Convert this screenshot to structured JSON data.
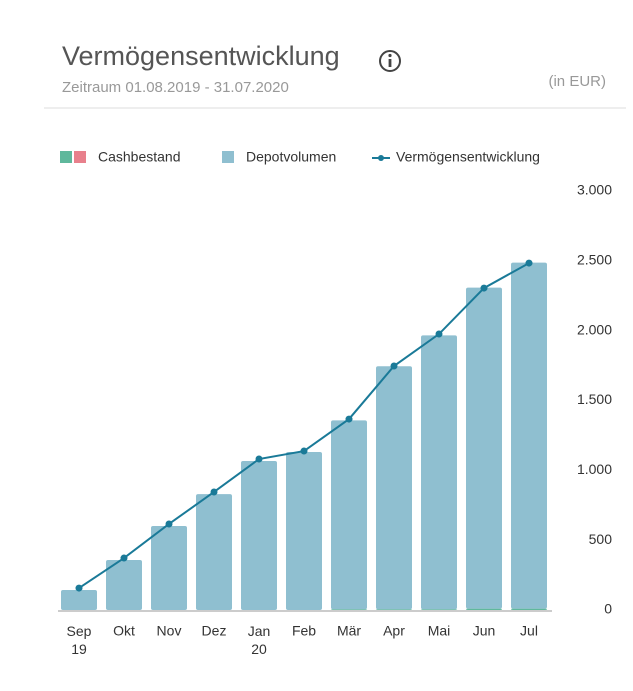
{
  "chart_data": {
    "type": "bar-line",
    "title": "Vermögensentwicklung",
    "subtitle": "Zeitraum 01.08.2019 - 31.07.2020",
    "unit_label": "(in EUR)",
    "categories": [
      "Sep 19",
      "Okt",
      "Nov",
      "Dez",
      "Jan 20",
      "Feb",
      "Mär",
      "Apr",
      "Mai",
      "Jun",
      "Jul"
    ],
    "series": [
      {
        "name": "Cashbestand",
        "kind": "bar",
        "color": "#5fb89c",
        "second_color": "#e8808c",
        "values": [
          0,
          0,
          0,
          0,
          0,
          0,
          5,
          5,
          5,
          10,
          10
        ]
      },
      {
        "name": "Depotvolumen",
        "kind": "bar",
        "color": "#8fbfd0",
        "values": [
          143,
          358,
          601,
          830,
          1067,
          1131,
          1353,
          1740,
          1961,
          2298,
          2477
        ]
      },
      {
        "name": "Vermögensentwicklung",
        "kind": "line",
        "color": "#1a7a98",
        "values": [
          157,
          372,
          616,
          845,
          1081,
          1138,
          1367,
          1747,
          1976,
          2305,
          2484
        ]
      }
    ],
    "ylim": [
      0,
      3000
    ],
    "yticks": [
      0,
      500,
      {
        "value": 1000,
        "label": "1.000"
      },
      {
        "value": 1500,
        "label": "1.500"
      },
      {
        "value": 2000,
        "label": "2.000"
      },
      {
        "value": 2500,
        "label": "2.500"
      },
      {
        "value": 3000,
        "label": "3.000"
      }
    ]
  }
}
